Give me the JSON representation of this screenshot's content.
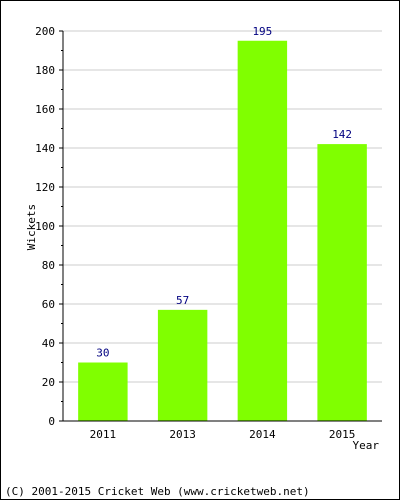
{
  "chart_data": {
    "type": "bar",
    "categories": [
      "2011",
      "2013",
      "2014",
      "2015"
    ],
    "values": [
      30,
      57,
      195,
      142
    ],
    "data_labels": [
      "30",
      "57",
      "195",
      "142"
    ],
    "title": "",
    "xlabel": "Year",
    "ylabel": "Wickets",
    "ylim": [
      0,
      200
    ],
    "yticks": [
      0,
      20,
      40,
      60,
      80,
      100,
      120,
      140,
      160,
      180,
      200
    ],
    "yticks_labels": [
      "0",
      "20",
      "40",
      "60",
      "80",
      "100",
      "120",
      "140",
      "160",
      "180",
      "200"
    ],
    "grid": true,
    "bar_color": "#80ff00",
    "data_label_color": "#000080",
    "grid_color": "#cccccc"
  },
  "footer": {
    "copyright": "(C) 2001-2015 Cricket Web (www.cricketweb.net)"
  }
}
